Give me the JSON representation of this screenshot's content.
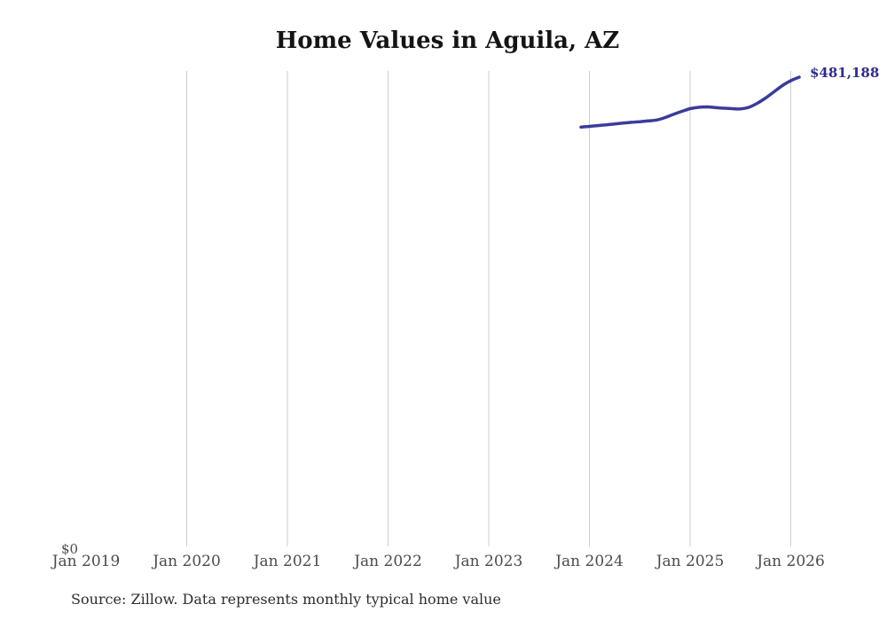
{
  "title": "Home Values in Aguila, AZ",
  "source_note": "Source: Zillow. Data represents monthly typical home value",
  "colors": {
    "line": "#3b3b9c",
    "end_label": "#2d2d8c",
    "gridline": "#cccccc",
    "axis_text": "#4b4b4b",
    "title_text": "#141414",
    "source_text": "#2e2e2e"
  },
  "chart_data": {
    "type": "line",
    "title": "Home Values in Aguila, AZ",
    "xlabel": "",
    "ylabel": "",
    "legend": "none",
    "grid": "vertical-only",
    "ylim": [
      0,
      null
    ],
    "y_ticks": [
      "$0"
    ],
    "end_label": "$481,188",
    "x_ticks": [
      {
        "label": "Jan 2019",
        "gridline": false
      },
      {
        "label": "Jan 2020",
        "gridline": true
      },
      {
        "label": "Jan 2021",
        "gridline": true
      },
      {
        "label": "Jan 2022",
        "gridline": true
      },
      {
        "label": "Jan 2023",
        "gridline": true
      },
      {
        "label": "Jan 2024",
        "gridline": true
      },
      {
        "label": "Jan 2025",
        "gridline": true
      },
      {
        "label": "Jan 2026",
        "gridline": true
      }
    ],
    "series": [
      {
        "name": "Monthly typical home value",
        "points": [
          {
            "m": "2023-12",
            "v": 430400
          },
          {
            "m": "2024-01",
            "v": 431100
          },
          {
            "m": "2024-02",
            "v": 431900
          },
          {
            "m": "2024-03",
            "v": 432700
          },
          {
            "m": "2024-04",
            "v": 433600
          },
          {
            "m": "2024-05",
            "v": 434400
          },
          {
            "m": "2024-06",
            "v": 435200
          },
          {
            "m": "2024-07",
            "v": 435900
          },
          {
            "m": "2024-08",
            "v": 436700
          },
          {
            "m": "2024-09",
            "v": 437600
          },
          {
            "m": "2024-10",
            "v": 440000
          },
          {
            "m": "2024-11",
            "v": 443300
          },
          {
            "m": "2024-12",
            "v": 446300
          },
          {
            "m": "2025-01",
            "v": 449100
          },
          {
            "m": "2025-02",
            "v": 450500
          },
          {
            "m": "2025-03",
            "v": 450900
          },
          {
            "m": "2025-04",
            "v": 450300
          },
          {
            "m": "2025-05",
            "v": 449600
          },
          {
            "m": "2025-06",
            "v": 449100
          },
          {
            "m": "2025-07",
            "v": 448900
          },
          {
            "m": "2025-08",
            "v": 450500
          },
          {
            "m": "2025-09",
            "v": 454600
          },
          {
            "m": "2025-10",
            "v": 460000
          },
          {
            "m": "2025-11",
            "v": 466300
          },
          {
            "m": "2025-12",
            "v": 472600
          },
          {
            "m": "2026-01",
            "v": 477600
          },
          {
            "m": "2026-02",
            "v": 481188
          }
        ]
      }
    ]
  }
}
